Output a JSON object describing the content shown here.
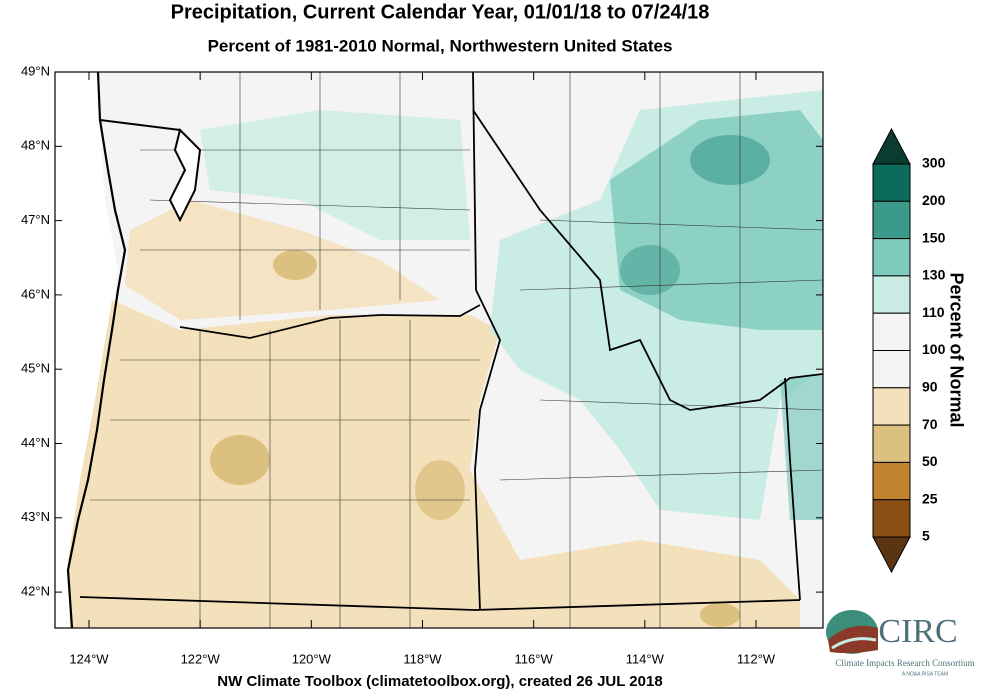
{
  "title": "Precipitation, Current Calendar Year, 01/01/18 to 07/24/18",
  "subtitle": "Percent of 1981-2010 Normal, Northwestern United States",
  "lat_ticks": [
    {
      "value": 49,
      "label": "49°N"
    },
    {
      "value": 48,
      "label": "48°N"
    },
    {
      "value": 47,
      "label": "47°N"
    },
    {
      "value": 46,
      "label": "46°N"
    },
    {
      "value": 45,
      "label": "45°N"
    },
    {
      "value": 44,
      "label": "44°N"
    },
    {
      "value": 43,
      "label": "43°N"
    },
    {
      "value": 42,
      "label": "42°N"
    }
  ],
  "lon_ticks": [
    {
      "value": -124,
      "label": "124°W"
    },
    {
      "value": -122,
      "label": "122°W"
    },
    {
      "value": -120,
      "label": "120°W"
    },
    {
      "value": -118,
      "label": "118°W"
    },
    {
      "value": -116,
      "label": "116°W"
    },
    {
      "value": -114,
      "label": "114°W"
    },
    {
      "value": -112,
      "label": "112°W"
    }
  ],
  "colorbar": {
    "title": "Percent of Normal",
    "labels": [
      300,
      200,
      150,
      130,
      110,
      100,
      90,
      70,
      50,
      25,
      5
    ],
    "colors": [
      "#0c3b31",
      "#0d6b5c",
      "#3b9a8c",
      "#7ecbbd",
      "#c9ece4",
      "#f4f4f4",
      "#f4f4f4",
      "#f3e1bb",
      "#dcc07f",
      "#c0852e",
      "#8b4e13",
      "#5a3413"
    ]
  },
  "footer": "NW Climate Toolbox (climatetoolbox.org), created 26 JUL 2018",
  "logo": {
    "name": "CIRC",
    "full_name": "Climate Impacts Research Consortium",
    "tagline": "A NOAA RISA TEAM"
  }
}
